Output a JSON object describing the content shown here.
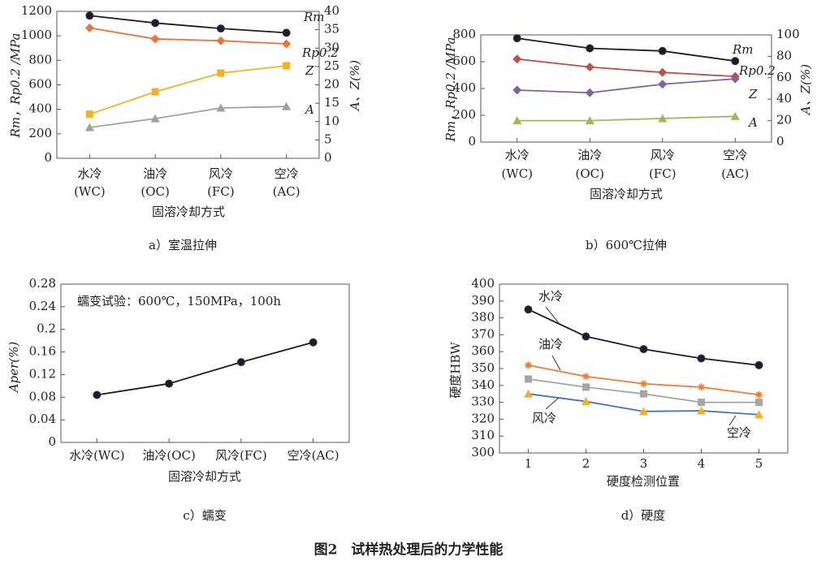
{
  "figure_caption": "图2　试样热处理后的力学性能",
  "chart_data": [
    {
      "type": "line",
      "caption": "a）室温拉伸",
      "x_label": "固溶冷却方式",
      "y_label": "Rm，Rp0.2 /MPa",
      "y2_label": "A、Z(%)",
      "categories": [
        [
          "水冷",
          "(WC)"
        ],
        [
          "油冷",
          "(OC)"
        ],
        [
          "风冷",
          "(FC)"
        ],
        [
          "空冷",
          "(AC)"
        ]
      ],
      "ylim": [
        0,
        1200
      ],
      "yticks": [
        0,
        200,
        400,
        600,
        800,
        1000,
        1200
      ],
      "y2lim": [
        0,
        40
      ],
      "y2ticks": [
        0,
        5,
        10,
        15,
        20,
        25,
        30,
        35,
        40
      ],
      "series": [
        {
          "name": "Rm",
          "color": "#1c1c2a",
          "marker": "circle",
          "values": [
            1165,
            1105,
            1060,
            1025
          ]
        },
        {
          "name": "Rp0.2",
          "color": "#e8743b",
          "marker": "diamond",
          "values": [
            1065,
            975,
            960,
            935
          ]
        },
        {
          "name": "Z",
          "color": "#f0b323",
          "marker": "square",
          "axis": "y2",
          "values": [
            12,
            18.1,
            23.2,
            25.2
          ]
        },
        {
          "name": "A",
          "color": "#a0a0a0",
          "marker": "triangle",
          "axis": "y2",
          "values": [
            8.4,
            10.8,
            13.7,
            14.1
          ]
        }
      ]
    },
    {
      "type": "line",
      "caption": "b）600℃拉伸",
      "x_label": "固溶冷却方式",
      "y_label": "Rm，Rp0.2 /MPa",
      "y2_label": "A、Z(%)",
      "categories": [
        [
          "水冷",
          "(WC)"
        ],
        [
          "油冷",
          "(OC)"
        ],
        [
          "风冷",
          "(FC)"
        ],
        [
          "空冷",
          "(AC)"
        ]
      ],
      "ylim": [
        0,
        800
      ],
      "yticks": [
        0,
        200,
        400,
        600,
        800
      ],
      "y2lim": [
        0,
        100
      ],
      "y2ticks": [
        0,
        20,
        40,
        60,
        80,
        100
      ],
      "series": [
        {
          "name": "Rm",
          "color": "#1c1c2a",
          "marker": "circle",
          "values": [
            775,
            700,
            680,
            605
          ]
        },
        {
          "name": "Rp0.2",
          "color": "#c0504d",
          "marker": "diamond",
          "values": [
            620,
            560,
            520,
            490
          ]
        },
        {
          "name": "Z",
          "color": "#8064a2",
          "marker": "diamond",
          "axis": "y2",
          "values": [
            48.5,
            46,
            54,
            59
          ]
        },
        {
          "name": "A",
          "color": "#9bbb59",
          "marker": "triangle",
          "axis": "y2",
          "values": [
            20,
            20,
            22,
            24
          ]
        }
      ]
    },
    {
      "type": "line",
      "caption": "c）蠕变",
      "x_label": "固溶冷却方式",
      "y_label": "Aper(%)",
      "annotation": "蠕变试验：600℃，150MPa，100h",
      "categories": [
        "水冷(WC)",
        "油冷(OC)",
        "风冷(FC)",
        "空冷(AC)"
      ],
      "ylim": [
        0,
        0.28
      ],
      "yticks": [
        0,
        0.04,
        0.08,
        0.12,
        0.16,
        0.2,
        0.24,
        0.28
      ],
      "series": [
        {
          "name": null,
          "color": "#1c1c2a",
          "marker": "circle",
          "values": [
            0.084,
            0.104,
            0.142,
            0.177
          ]
        }
      ]
    },
    {
      "type": "line",
      "caption": "d）硬度",
      "x_label": "硬度检测位置",
      "y_label": "硬度HBW",
      "x": [
        1,
        2,
        3,
        4,
        5
      ],
      "xlim": [
        0.5,
        5.5
      ],
      "xticks": [
        1,
        2,
        3,
        4,
        5
      ],
      "ylim": [
        300,
        400
      ],
      "yticks": [
        300,
        310,
        320,
        330,
        340,
        350,
        360,
        370,
        380,
        390,
        400
      ],
      "series": [
        {
          "name": "水冷",
          "color": "#1c1c2a",
          "marker": "circle",
          "values": [
            385,
            369,
            361.5,
            356,
            352
          ]
        },
        {
          "name": "油冷",
          "color": "#ed7d31",
          "marker": "asterisk",
          "values": [
            352,
            345.3,
            341,
            339,
            334.5
          ]
        },
        {
          "name": "风冷",
          "color": "#a5a5a5",
          "marker": "square",
          "values": [
            343.8,
            339,
            335,
            330,
            330
          ]
        },
        {
          "name": "空冷",
          "color": "#4472c4",
          "marker_color": "#f0b323",
          "marker": "triangle",
          "values": [
            335,
            330.5,
            324.6,
            325,
            322.7
          ]
        }
      ]
    }
  ]
}
